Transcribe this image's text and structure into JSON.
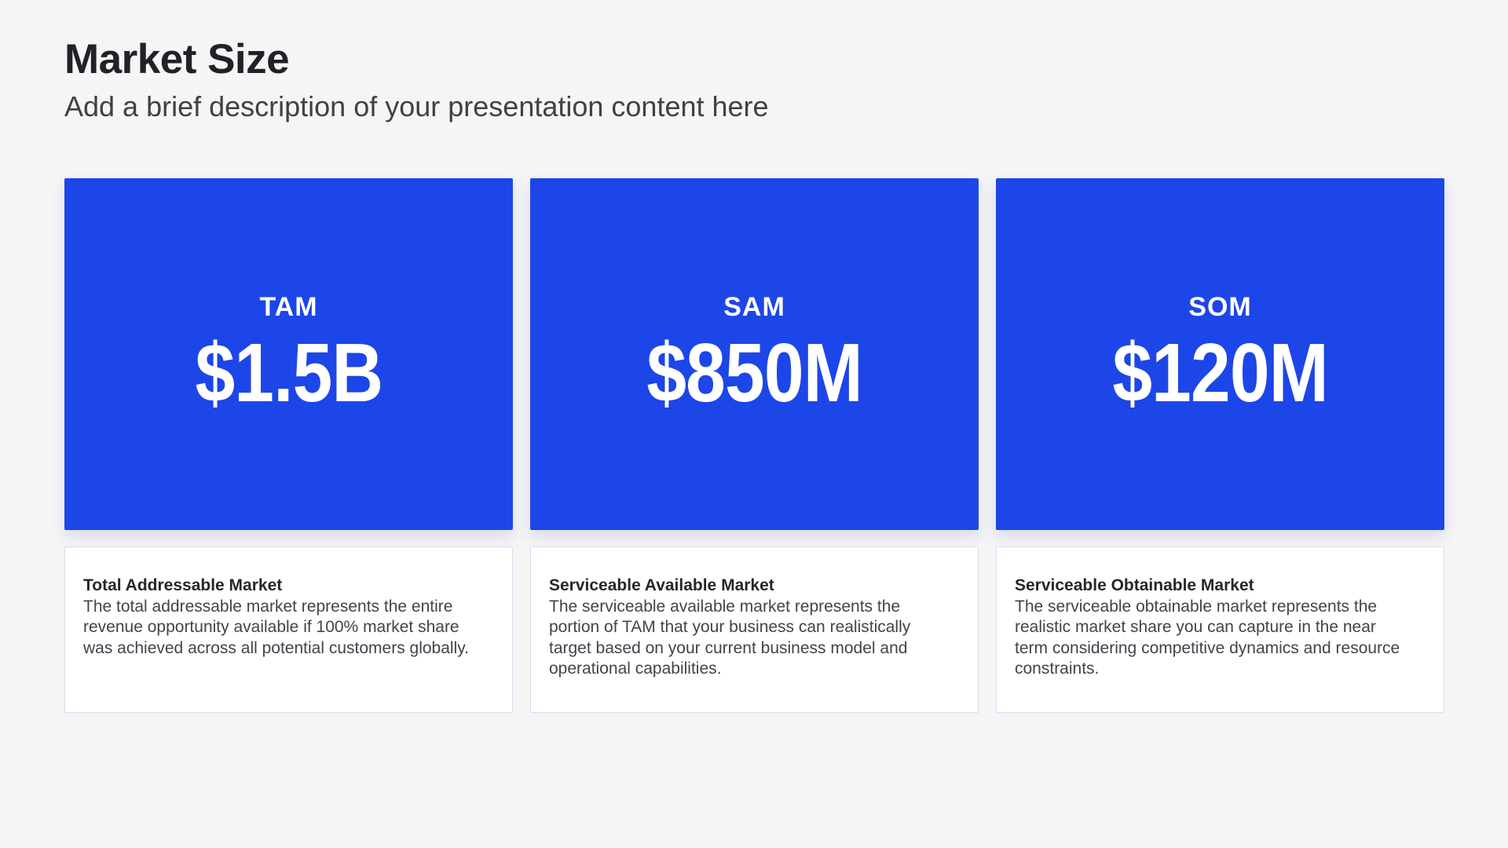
{
  "slide": {
    "title": "Market Size",
    "subtitle": "Add a brief description of your presentation content here"
  },
  "colors": {
    "background": "#f5f5f6",
    "accent_blue": "#1d46e8",
    "card_text": "#ffffff",
    "title_text": "#212227",
    "subtitle_text": "#3e4145",
    "heading_text": "#25272b",
    "body_text": "#40444b",
    "card_border": "#d9dcf0",
    "card_bg": "#ffffff"
  },
  "metrics": [
    {
      "label": "TAM",
      "value": "$1.5B",
      "heading": "Total Addressable Market",
      "description": "The total addressable market represents the entire revenue opportunity available if 100% market share was achieved across all potential customers globally."
    },
    {
      "label": "SAM",
      "value": "$850M",
      "heading": "Serviceable Available Market",
      "description": "The serviceable available market represents the portion of TAM that your business can realistically target based on your current business model and operational capabilities."
    },
    {
      "label": "SOM",
      "value": "$120M",
      "heading": "Serviceable Obtainable Market",
      "description": "The serviceable obtainable market represents the realistic market share you can capture in the near term considering competitive dynamics and resource constraints."
    }
  ]
}
